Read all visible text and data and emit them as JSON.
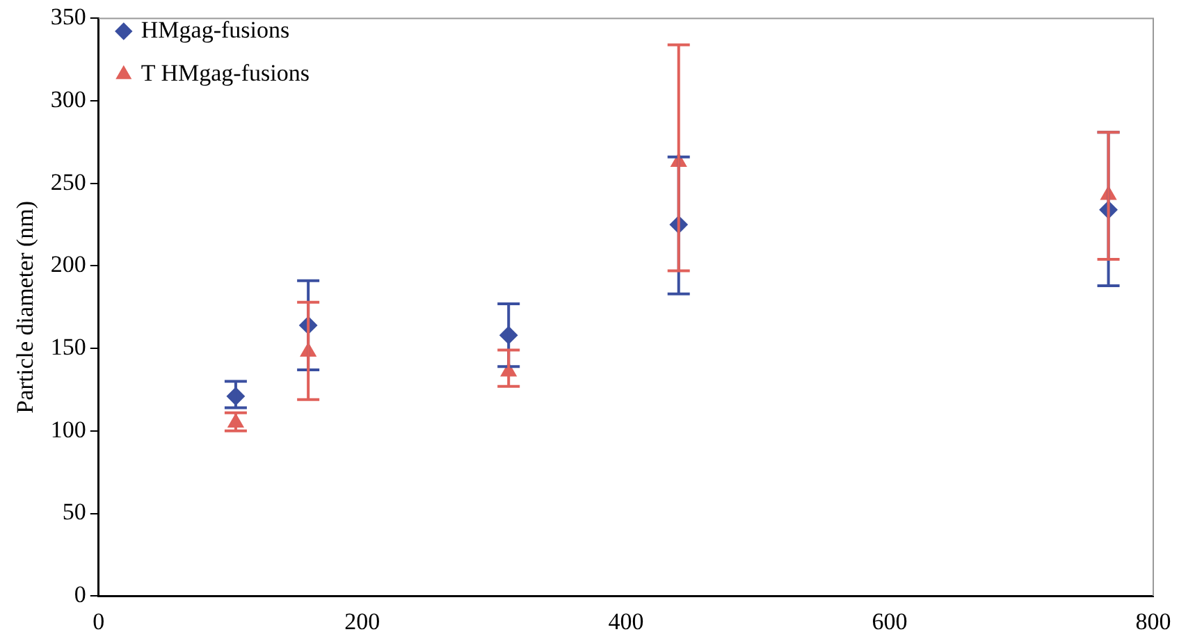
{
  "chart_data": {
    "type": "scatter",
    "ylabel": "Particle diameter (nm)",
    "xlim": [
      0,
      800
    ],
    "xticks": [
      0,
      200,
      400,
      600,
      800
    ],
    "ylim": [
      0,
      350
    ],
    "yticks": [
      0,
      50,
      100,
      150,
      200,
      250,
      300,
      350
    ],
    "grid": false,
    "legend": "top left",
    "series": [
      {
        "name": "HMgag-fusions",
        "color": "#3a4fa0",
        "marker": "diamond",
        "x": [
          104,
          159,
          311,
          440,
          766
        ],
        "values": [
          121,
          164,
          158,
          225,
          234
        ],
        "errors": [
          [
            114,
            130
          ],
          [
            137,
            191
          ],
          [
            139,
            177
          ],
          [
            183,
            266
          ],
          [
            188,
            281
          ]
        ]
      },
      {
        "name": "T HMgag-fusions",
        "color": "#e0605a",
        "marker": "triangle",
        "x": [
          104,
          159,
          311,
          440,
          766
        ],
        "values": [
          105,
          148,
          136,
          263,
          243
        ],
        "errors": [
          [
            100,
            111
          ],
          [
            119,
            178
          ],
          [
            127,
            149
          ],
          [
            197,
            334
          ],
          [
            204,
            281
          ]
        ]
      }
    ]
  }
}
